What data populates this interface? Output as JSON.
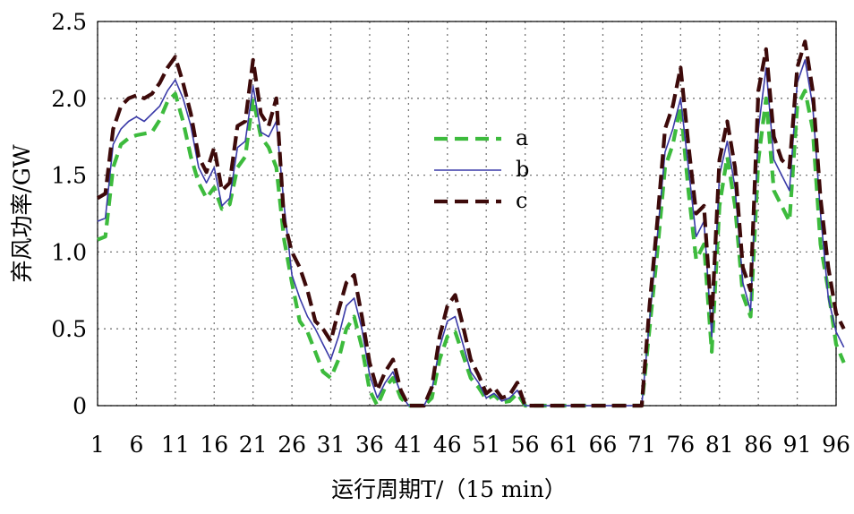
{
  "chart_data": {
    "type": "line",
    "title": "",
    "xlabel": "运行周期T/（15 min）",
    "ylabel": "弃风功率/GW",
    "xlim": [
      1,
      96
    ],
    "ylim": [
      0,
      2.5
    ],
    "x_ticks": [
      "1",
      "6",
      "11",
      "16",
      "21",
      "26",
      "31",
      "36",
      "41",
      "46",
      "51",
      "56",
      "61",
      "66",
      "71",
      "76",
      "81",
      "86",
      "91",
      "96"
    ],
    "y_ticks": [
      "0",
      "0.5",
      "1.0",
      "1.5",
      "2.0",
      "2.5"
    ],
    "grid": true,
    "legend_position": "center-top",
    "series": [
      {
        "name": "a",
        "color": "#3dbb3d",
        "style": "dashed",
        "values": [
          1.08,
          1.1,
          1.55,
          1.7,
          1.74,
          1.76,
          1.77,
          1.78,
          1.86,
          1.98,
          2.03,
          1.85,
          1.62,
          1.45,
          1.35,
          1.42,
          1.28,
          1.31,
          1.55,
          1.62,
          2.0,
          1.75,
          1.68,
          1.55,
          1.08,
          0.8,
          0.55,
          0.48,
          0.35,
          0.22,
          0.18,
          0.3,
          0.5,
          0.58,
          0.38,
          0.1,
          0.0,
          0.12,
          0.18,
          0.05,
          0.0,
          0.0,
          0.0,
          0.05,
          0.3,
          0.45,
          0.48,
          0.33,
          0.18,
          0.12,
          0.04,
          0.07,
          0.02,
          0.03,
          0.08,
          0.0,
          0.0,
          0.0,
          0.0,
          0.0,
          0.0,
          0.0,
          0.0,
          0.0,
          0.0,
          0.0,
          0.0,
          0.0,
          0.0,
          0.0,
          0.0,
          0.5,
          1.0,
          1.55,
          1.7,
          1.95,
          1.4,
          0.95,
          1.05,
          0.35,
          1.3,
          1.62,
          1.3,
          0.72,
          0.58,
          1.6,
          2.0,
          1.4,
          1.3,
          1.2,
          1.95,
          2.05,
          1.8,
          1.05,
          0.75,
          0.4,
          0.28
        ]
      },
      {
        "name": "b",
        "color": "#3a3aa8",
        "style": "solid",
        "values": [
          1.2,
          1.22,
          1.7,
          1.8,
          1.85,
          1.88,
          1.85,
          1.9,
          1.95,
          2.05,
          2.12,
          2.0,
          1.82,
          1.55,
          1.45,
          1.55,
          1.3,
          1.35,
          1.68,
          1.72,
          2.08,
          1.78,
          1.75,
          1.85,
          1.3,
          0.85,
          0.7,
          0.58,
          0.5,
          0.4,
          0.3,
          0.45,
          0.65,
          0.7,
          0.5,
          0.2,
          0.05,
          0.15,
          0.22,
          0.08,
          0.0,
          0.0,
          0.0,
          0.1,
          0.38,
          0.55,
          0.58,
          0.4,
          0.22,
          0.15,
          0.05,
          0.08,
          0.03,
          0.05,
          0.1,
          0.0,
          0.0,
          0.0,
          0.0,
          0.0,
          0.0,
          0.0,
          0.0,
          0.0,
          0.0,
          0.0,
          0.0,
          0.0,
          0.0,
          0.0,
          0.0,
          0.55,
          1.1,
          1.65,
          1.8,
          2.0,
          1.55,
          1.1,
          1.2,
          0.45,
          1.5,
          1.72,
          1.42,
          0.8,
          0.62,
          1.8,
          2.2,
          1.6,
          1.5,
          1.4,
          2.1,
          2.25,
          1.95,
          1.25,
          0.7,
          0.48,
          0.38
        ]
      },
      {
        "name": "c",
        "color": "#3d0a0a",
        "style": "dashed",
        "values": [
          1.35,
          1.38,
          1.8,
          1.95,
          2.0,
          2.02,
          2.0,
          2.03,
          2.1,
          2.2,
          2.27,
          2.1,
          1.9,
          1.62,
          1.52,
          1.68,
          1.4,
          1.45,
          1.82,
          1.85,
          2.25,
          1.9,
          1.82,
          2.0,
          1.2,
          1.0,
          0.9,
          0.75,
          0.55,
          0.5,
          0.42,
          0.62,
          0.8,
          0.85,
          0.58,
          0.28,
          0.1,
          0.22,
          0.3,
          0.1,
          0.0,
          0.0,
          0.0,
          0.12,
          0.45,
          0.65,
          0.72,
          0.52,
          0.3,
          0.2,
          0.08,
          0.12,
          0.05,
          0.07,
          0.15,
          0.0,
          0.0,
          0.0,
          0.0,
          0.0,
          0.0,
          0.0,
          0.0,
          0.0,
          0.0,
          0.0,
          0.0,
          0.0,
          0.0,
          0.0,
          0.0,
          0.65,
          1.2,
          1.8,
          1.95,
          2.2,
          1.7,
          1.25,
          1.3,
          0.55,
          1.6,
          1.85,
          1.55,
          0.9,
          0.75,
          2.05,
          2.32,
          1.75,
          1.6,
          1.55,
          2.2,
          2.37,
          2.05,
          1.35,
          0.9,
          0.6,
          0.5
        ]
      }
    ]
  }
}
